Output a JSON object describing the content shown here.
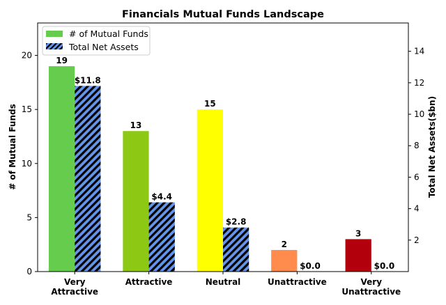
{
  "chart_data": {
    "type": "bar",
    "title": "Financials Mutual Funds Landscape",
    "ylabel": "# of Mutual Funds",
    "y2label": "Total Net Assets($bn)",
    "ylim": [
      0,
      23
    ],
    "y2lim": [
      0,
      15.8
    ],
    "yticks": [
      0,
      5,
      10,
      15,
      20
    ],
    "y2ticks": [
      2,
      4,
      6,
      8,
      10,
      12,
      14
    ],
    "categories": [
      "Very\nAttractive",
      "Attractive",
      "Neutral",
      "Unattractive",
      "Very\nUnattractive"
    ],
    "series": [
      {
        "name": "# of Mutual Funds",
        "axis": "left",
        "values": [
          19,
          13,
          15,
          2,
          3
        ],
        "labels": [
          "19",
          "13",
          "15",
          "2",
          "3"
        ],
        "colors": [
          "#66cc4d",
          "#8cc814",
          "#ffff00",
          "#ff8c4d",
          "#b3000d"
        ]
      },
      {
        "name": "Total Net Assets",
        "axis": "right",
        "values": [
          11.8,
          4.4,
          2.8,
          0.0,
          0.0
        ],
        "labels": [
          "$11.8",
          "$4.4",
          "$2.8",
          "$0.0",
          "$0.0"
        ],
        "color": "#6495ed",
        "hatch": "diagonal"
      }
    ],
    "legend_position": "top-left",
    "grid": false
  }
}
